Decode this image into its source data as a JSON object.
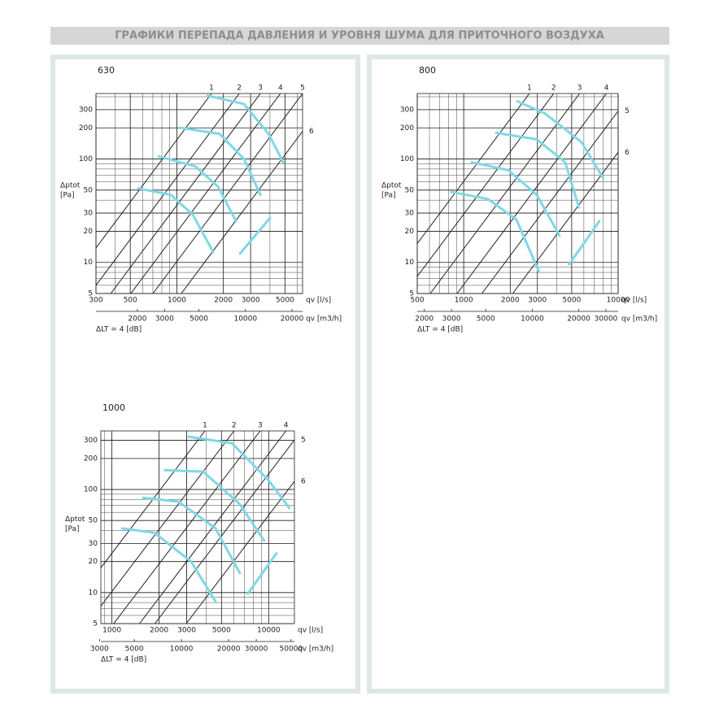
{
  "header": {
    "title": "ГРАФИКИ ПЕРЕПАДА ДАВЛЕНИЯ И УРОВНЯ ШУМА ДЛЯ ПРИТОЧНОГО ВОЗДУХА"
  },
  "chart_data": [
    {
      "type": "line",
      "title": "630",
      "ylabel": "Δptot",
      "yunit": "[Pa]",
      "xlabel": "qv [l/s]",
      "x2label": "qv [m3/h]",
      "note": "ΔLT = 4 [dB]",
      "log_x": true,
      "log_y": true,
      "grid": true,
      "xlim": [
        300,
        6500
      ],
      "xticks": [
        300,
        500,
        1000,
        2000,
        3000,
        5000
      ],
      "x2lim": [
        1080,
        23400
      ],
      "x2ticks": [
        2000,
        3000,
        5000,
        10000,
        20000
      ],
      "ylim": [
        5,
        430
      ],
      "yticks": [
        5,
        10,
        20,
        30,
        50,
        100,
        200,
        300
      ],
      "series": [
        {
          "name": "1",
          "color": "#222222",
          "x": [
            300,
            1675
          ],
          "values": [
            13.8,
            430
          ]
        },
        {
          "name": "2",
          "color": "#222222",
          "x": [
            300,
            2533
          ],
          "values": [
            6,
            430
          ]
        },
        {
          "name": "3",
          "color": "#222222",
          "x": [
            374,
            3470
          ],
          "values": [
            5,
            430
          ]
        },
        {
          "name": "4",
          "color": "#222222",
          "x": [
            504,
            4677
          ],
          "values": [
            5,
            430
          ]
        },
        {
          "name": "5",
          "color": "#222222",
          "x": [
            700,
            6500
          ],
          "values": [
            5,
            430
          ]
        },
        {
          "name": "6",
          "color": "#222222",
          "x": [
            1068,
            6500
          ],
          "values": [
            5,
            185
          ]
        }
      ],
      "curves": [
        {
          "color": "#7fd8e4",
          "x": [
            1580,
            2720,
            3920,
            4870
          ],
          "values": [
            410,
            340,
            175,
            93
          ]
        },
        {
          "color": "#7fd8e4",
          "x": [
            1060,
            1890,
            2720,
            3470
          ],
          "values": [
            200,
            175,
            100,
            45
          ]
        },
        {
          "color": "#7fd8e4",
          "x": [
            762,
            1316,
            1848,
            2413
          ],
          "values": [
            106,
            85,
            54,
            25
          ]
        },
        {
          "color": "#7fd8e4",
          "x": [
            563,
            914,
            1268,
            1718
          ],
          "values": [
            52,
            45,
            29,
            12.6
          ]
        },
        {
          "color": "#7fd8e4",
          "x": [
            2565,
            4011
          ],
          "values": [
            12.2,
            27
          ]
        }
      ]
    },
    {
      "type": "line",
      "title": "800",
      "ylabel": "Δptot",
      "yunit": "[Pa]",
      "xlabel": "qv [l/s]",
      "x2label": "qv [m3/h]",
      "note": "ΔLT = 4 [dB]",
      "log_x": true,
      "log_y": true,
      "grid": true,
      "xlim": [
        500,
        10000
      ],
      "xticks": [
        500,
        1000,
        2000,
        3000,
        5000,
        10000
      ],
      "x2lim": [
        1800,
        36000
      ],
      "x2ticks": [
        2000,
        3000,
        5000,
        10000,
        20000,
        30000
      ],
      "ylim": [
        5,
        430
      ],
      "yticks": [
        5,
        10,
        20,
        30,
        50,
        100,
        200,
        300
      ],
      "series": [
        {
          "name": "1",
          "color": "#222222",
          "x": [
            500,
            2660
          ],
          "values": [
            15.2,
            430
          ]
        },
        {
          "name": "2",
          "color": "#222222",
          "x": [
            500,
            3826
          ],
          "values": [
            7.3,
            430
          ]
        },
        {
          "name": "3",
          "color": "#222222",
          "x": [
            607,
            5633
          ],
          "values": [
            5,
            430
          ]
        },
        {
          "name": "4",
          "color": "#222222",
          "x": [
            906,
            8400
          ],
          "values": [
            5,
            430
          ]
        },
        {
          "name": "5",
          "color": "#222222",
          "x": [
            1311,
            10000
          ],
          "values": [
            5,
            291
          ]
        },
        {
          "name": "6",
          "color": "#222222",
          "x": [
            2076,
            10000
          ],
          "values": [
            5,
            116
          ]
        }
      ],
      "curves": [
        {
          "color": "#7fd8e4",
          "x": [
            2220,
            3352,
            5780,
            8020
          ],
          "values": [
            362,
            276,
            146,
            65
          ]
        },
        {
          "color": "#7fd8e4",
          "x": [
            1621,
            2970,
            4540,
            5575
          ],
          "values": [
            179,
            155,
            93,
            34
          ]
        },
        {
          "color": "#7fd8e4",
          "x": [
            1127,
            1942,
            2970,
            4170
          ],
          "values": [
            93,
            78,
            45,
            18.2
          ]
        },
        {
          "color": "#7fd8e4",
          "x": [
            832,
            1435,
            2193,
            3076
          ],
          "values": [
            48,
            41,
            26,
            8.1
          ]
        },
        {
          "color": "#7fd8e4",
          "x": [
            4820,
            7550
          ],
          "values": [
            9.6,
            25
          ]
        }
      ]
    },
    {
      "type": "line",
      "title": "1000",
      "ylabel": "Δptot",
      "yunit": "[Pa]",
      "xlabel": "qv [l/s]",
      "x2label": "qv [m3/h]",
      "note": "ΔLT = 4 [dB]",
      "log_x": true,
      "log_y": true,
      "grid": true,
      "xlim": [
        850,
        14600
      ],
      "xticks": [
        1000,
        2000,
        3000,
        5000,
        10000
      ],
      "x2lim": [
        3060,
        52560
      ],
      "x2ticks": [
        3000,
        5000,
        10000,
        20000,
        30000,
        50000
      ],
      "ylim": [
        5,
        370
      ],
      "yticks": [
        5,
        10,
        20,
        30,
        50,
        100,
        200,
        300
      ],
      "series": [
        {
          "name": "1",
          "color": "#222222",
          "x": [
            850,
            3920
          ],
          "values": [
            17.4,
            370
          ]
        },
        {
          "name": "2",
          "color": "#222222",
          "x": [
            850,
            6010
          ],
          "values": [
            7.4,
            370
          ]
        },
        {
          "name": "3",
          "color": "#222222",
          "x": [
            1026,
            8830
          ],
          "values": [
            5,
            370
          ]
        },
        {
          "name": "4",
          "color": "#222222",
          "x": [
            1499,
            12900
          ],
          "values": [
            5,
            370
          ]
        },
        {
          "name": "5",
          "color": "#222222",
          "x": [
            1879,
            14600
          ],
          "values": [
            5,
            302
          ]
        },
        {
          "name": "6",
          "color": "#222222",
          "x": [
            2980,
            14600
          ],
          "values": [
            5,
            120
          ]
        }
      ],
      "curves": [
        {
          "color": "#7fd8e4",
          "x": [
            3090,
            5830,
            9930,
            13550
          ],
          "values": [
            325,
            281,
            124,
            66
          ]
        },
        {
          "color": "#7fd8e4",
          "x": [
            2176,
            3820,
            6540,
            9340
          ],
          "values": [
            154,
            149,
            72,
            32
          ]
        },
        {
          "color": "#7fd8e4",
          "x": [
            1583,
            2670,
            4580,
            6540
          ],
          "values": [
            83,
            76,
            42,
            15.5
          ]
        },
        {
          "color": "#7fd8e4",
          "x": [
            1160,
            1870,
            3200,
            4580
          ],
          "values": [
            42,
            38,
            20,
            8.2
          ]
        },
        {
          "color": "#7fd8e4",
          "x": [
            7370,
            11200
          ],
          "values": [
            9.8,
            24
          ]
        }
      ]
    }
  ]
}
